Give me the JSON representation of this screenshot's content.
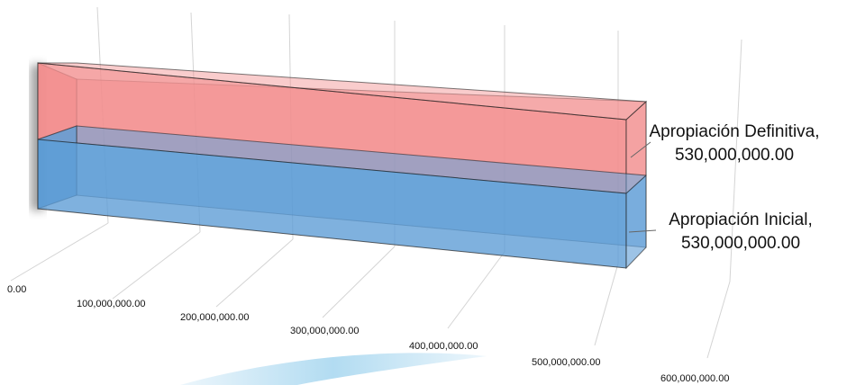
{
  "chart_data": {
    "type": "bar",
    "orientation": "horizontal",
    "style": "3d-stacked-cylinder-box",
    "xlim": [
      0,
      600000000
    ],
    "tick_labels": [
      "0.00",
      "100,000,000.00",
      "200,000,000.00",
      "300,000,000.00",
      "400,000,000.00",
      "500,000,000.00",
      "600,000,000.00"
    ],
    "grid": true,
    "legend": "none",
    "bars": [
      {
        "name": "Apropiación Definitiva",
        "value": 530000000,
        "label_line1": "Apropiación Definitiva,",
        "label_line2": "530,000,000.00",
        "color": "#f28e8e"
      },
      {
        "name": "Apropiación Inicial",
        "value": 530000000,
        "label_line1": "Apropiación Inicial,",
        "label_line2": "530,000,000.00",
        "color": "#5b9bd5"
      }
    ]
  }
}
